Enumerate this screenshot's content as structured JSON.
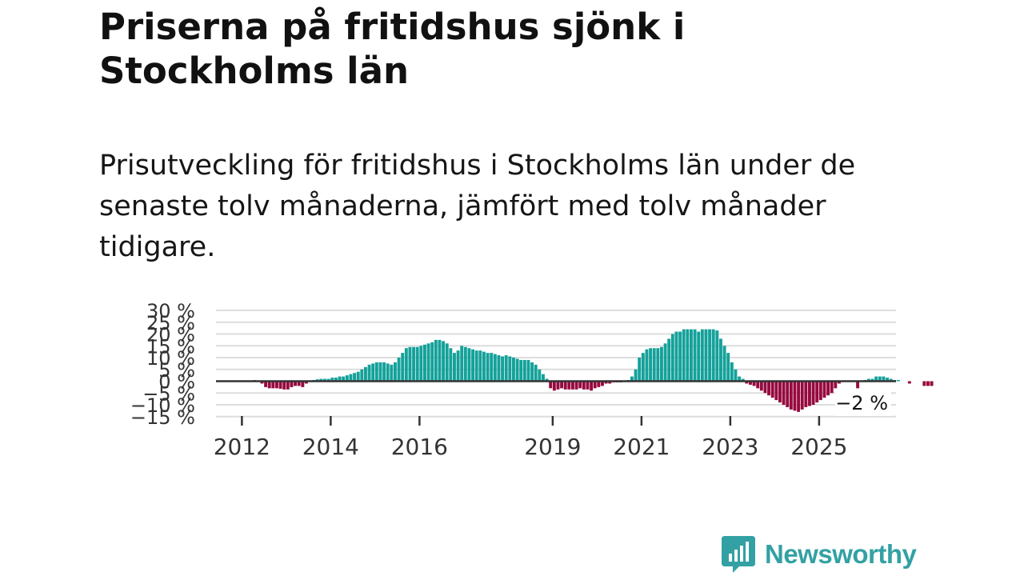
{
  "header": {
    "title": "Priserna på fritidshus sjönk i Stockholms län",
    "subtitle": "Prisutveckling för fritidshus i Stockholms län under de senaste tolv månaderna, jämfört med tolv månader tidigare."
  },
  "colors": {
    "positive": "#14a19a",
    "negative": "#960a3f",
    "zero_line": "#333333",
    "grid": "#dddddd",
    "brand": "#33a1a3"
  },
  "chart_data": {
    "type": "bar",
    "title": "Priserna på fritidshus sjönk i Stockholms län",
    "xlabel": "",
    "ylabel": "",
    "grid": true,
    "ylim": [
      -15,
      30
    ],
    "y_ticks": [
      30,
      25,
      20,
      15,
      10,
      5,
      0,
      -5,
      -10,
      -15
    ],
    "y_tick_labels": [
      "30 %",
      "25 %",
      "20 %",
      "15 %",
      "10 %",
      "5 %",
      "0 %",
      "−5 %",
      "−10 %",
      "−15 %"
    ],
    "x_ticks": [
      2012,
      2014,
      2016,
      2019,
      2021,
      2023,
      2025
    ],
    "x_tick_labels": [
      "2012",
      "2014",
      "2016",
      "2019",
      "2021",
      "2023",
      "2025"
    ],
    "period": {
      "start": "2011-06",
      "end": "2026-09",
      "granularity": "month"
    },
    "series": [
      {
        "name": "Prisutveckling",
        "values": [
          0,
          0,
          0,
          0,
          0,
          0,
          0,
          0,
          0,
          0,
          0.5,
          0.3,
          -1,
          -2.5,
          -3,
          -3,
          -3,
          -3.2,
          -3.5,
          -3.5,
          -2.5,
          -2,
          -2,
          -2.5,
          -1,
          0,
          0.5,
          0.8,
          1,
          1,
          1,
          1.5,
          1.5,
          2,
          2,
          2.5,
          3,
          3.5,
          4,
          5,
          6,
          7,
          7.5,
          8,
          8,
          8,
          7.5,
          7,
          8,
          10,
          12,
          14,
          14.5,
          14.5,
          14.5,
          15,
          15.5,
          16,
          16.5,
          17.5,
          17.5,
          17,
          16,
          14,
          12,
          13,
          15,
          14.5,
          14,
          13.5,
          13,
          13,
          12.5,
          12,
          12,
          11.5,
          11,
          10.5,
          11,
          10.5,
          10,
          9.5,
          9,
          9,
          9,
          8,
          7,
          5,
          3,
          1,
          -3,
          -4,
          -3.5,
          -3,
          -3.5,
          -3.5,
          -3.5,
          -3.5,
          -3,
          -3.5,
          -3.5,
          -4,
          -3,
          -2.5,
          -2,
          -1,
          -1,
          -0.5,
          -0.5,
          -0.5,
          0,
          0.5,
          2,
          5,
          10,
          12,
          13.5,
          14,
          14,
          14,
          14.5,
          16,
          18,
          20,
          21,
          21,
          22,
          22,
          22,
          22,
          21,
          22,
          22,
          22,
          22,
          21.5,
          18,
          15,
          12,
          8,
          5,
          2,
          1,
          -1,
          -1.5,
          -2,
          -3,
          -4,
          -5,
          -6,
          -7,
          -8,
          -9,
          -10,
          -11,
          -12,
          -12.5,
          -13,
          -12,
          -11,
          -10.5,
          -10,
          -9,
          -8,
          -7,
          -6,
          -5,
          -3,
          -1,
          0,
          0,
          0,
          0,
          -3,
          0,
          0.5,
          1,
          1,
          2,
          2,
          2,
          1.5,
          1,
          0.5,
          0.5,
          0,
          0,
          -1,
          0,
          0,
          0,
          -2,
          -2,
          -2,
          0
        ]
      }
    ],
    "annotations": [
      {
        "label": "−2 %",
        "target": "last"
      }
    ]
  },
  "brand": {
    "name": "Newsworthy",
    "logo_icon": "bar-chart-speech-bubble-icon"
  }
}
